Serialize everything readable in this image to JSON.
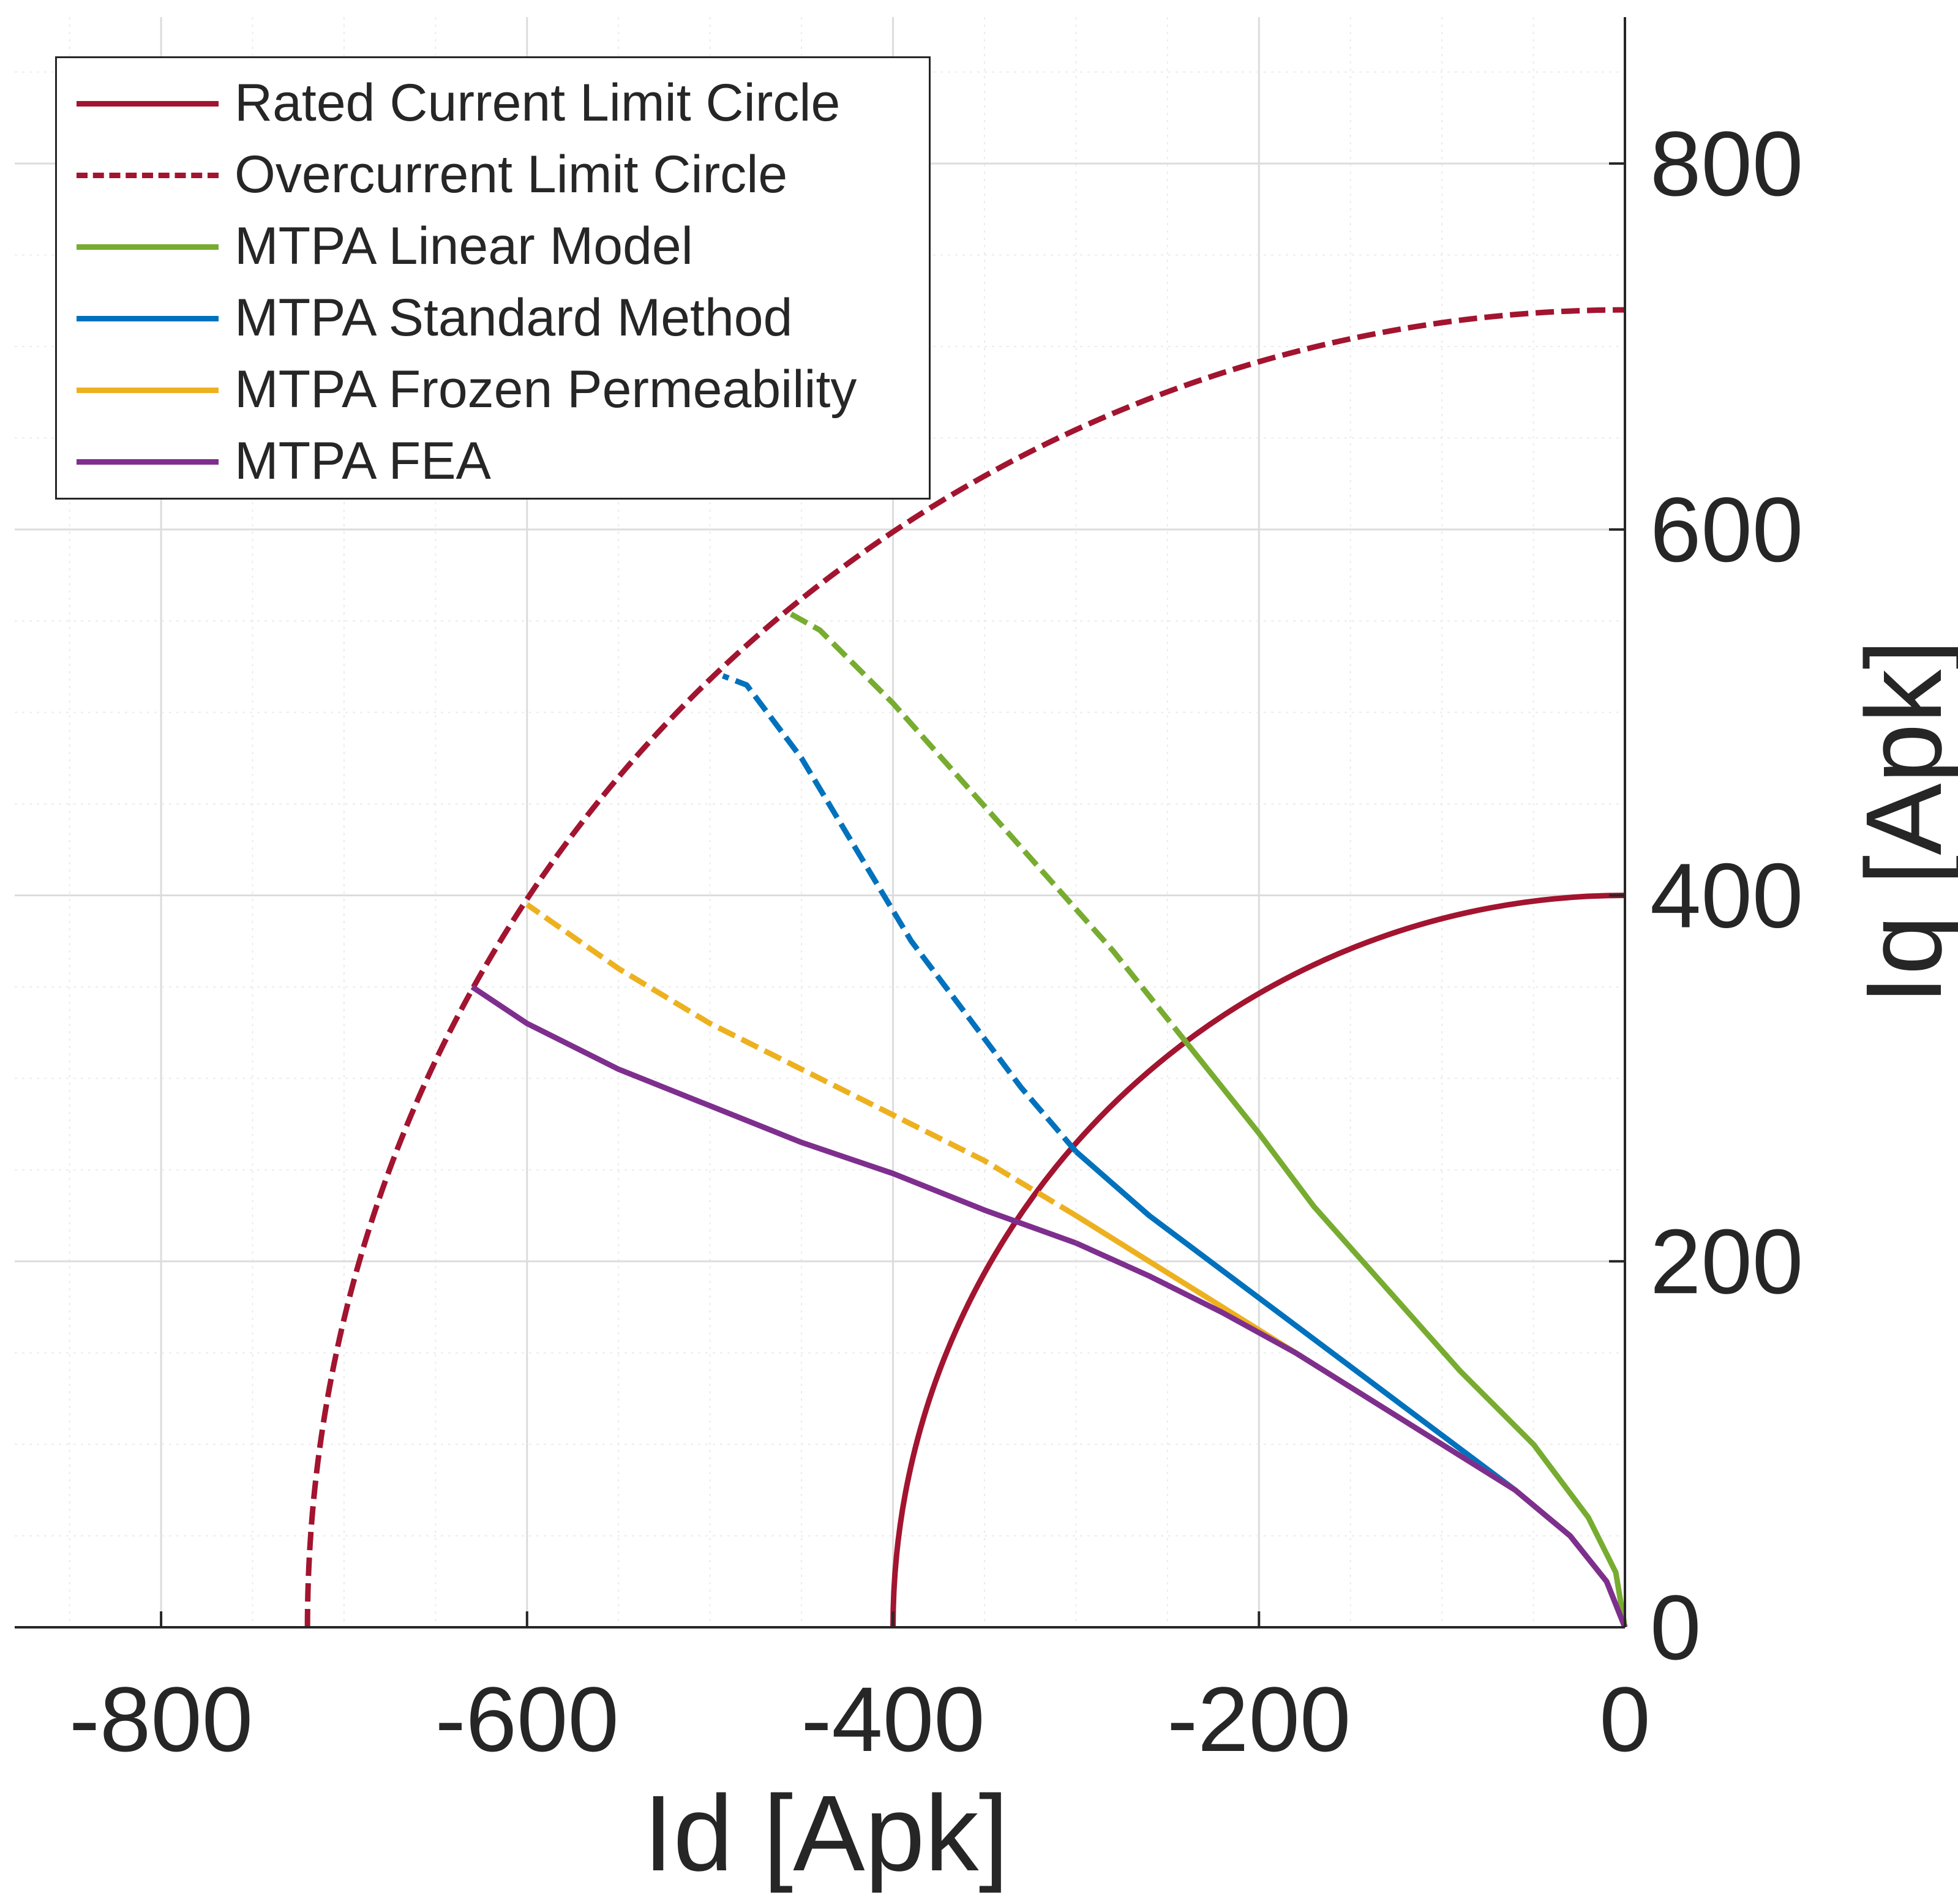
{
  "chart_data": {
    "type": "line",
    "title": "",
    "xlabel": "Id [Apk]",
    "ylabel": "Iq [Apk]",
    "xlim": [
      -880,
      0
    ],
    "ylim": [
      0,
      880
    ],
    "xticks": [
      -800,
      -600,
      -400,
      -200,
      0
    ],
    "yticks": [
      0,
      200,
      400,
      600,
      800
    ],
    "grid": true,
    "minor_grid": true,
    "legend_position": "top-left",
    "series": [
      {
        "name": "Rated Current Limit Circle",
        "style": "solid",
        "color": "#A2142F",
        "kind": "arc",
        "radius": 400
      },
      {
        "name": "Overcurrent Limit Circle",
        "style": "dashed",
        "color": "#A2142F",
        "kind": "arc",
        "radius": 720
      },
      {
        "name": "MTPA Linear Model",
        "color": "#77AC30",
        "rated_segment_style": "solid",
        "over_segment_style": "dashed",
        "x": [
          0,
          -5,
          -20,
          -50,
          -90,
          -130,
          -170,
          -200,
          -240,
          -280,
          -320,
          -360,
          -400,
          -440,
          -458
        ],
        "y": [
          0,
          30,
          60,
          100,
          140,
          185,
          230,
          270,
          320,
          370,
          415,
          460,
          505,
          545,
          555
        ]
      },
      {
        "name": "MTPA Standard Method",
        "color": "#0072BD",
        "rated_segment_style": "solid",
        "over_segment_style": "dashed",
        "x": [
          0,
          -10,
          -30,
          -60,
          -100,
          -140,
          -180,
          -220,
          -260,
          -300,
          -330,
          -360,
          -390,
          -420,
          -450,
          -480,
          -493
        ],
        "y": [
          0,
          25,
          50,
          75,
          105,
          135,
          165,
          195,
          225,
          260,
          295,
          335,
          375,
          425,
          475,
          515,
          520
        ]
      },
      {
        "name": "MTPA Frozen Permeability",
        "color": "#EDB120",
        "rated_segment_style": "solid",
        "over_segment_style": "dashed",
        "x": [
          0,
          -10,
          -30,
          -60,
          -100,
          -140,
          -180,
          -220,
          -260,
          -300,
          -350,
          -400,
          -450,
          -500,
          -550,
          -600
        ],
        "y": [
          0,
          25,
          50,
          75,
          100,
          125,
          150,
          175,
          200,
          225,
          255,
          280,
          305,
          330,
          360,
          395
        ]
      },
      {
        "name": "MTPA FEA",
        "color": "#7E2F8E",
        "rated_segment_style": "solid",
        "over_segment_style": "solid",
        "x": [
          0,
          -10,
          -30,
          -60,
          -100,
          -140,
          -180,
          -220,
          -260,
          -300,
          -350,
          -400,
          -450,
          -500,
          -550,
          -600,
          -630
        ],
        "y": [
          0,
          25,
          50,
          75,
          100,
          125,
          150,
          172,
          192,
          210,
          228,
          248,
          265,
          285,
          305,
          330,
          350
        ]
      }
    ]
  }
}
